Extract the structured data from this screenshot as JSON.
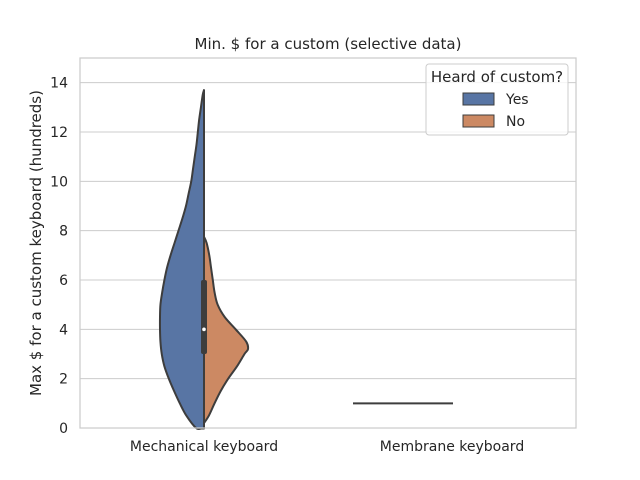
{
  "chart_data": {
    "type": "violin",
    "title": "Min. $ for a custom (selective data)",
    "xlabel": "",
    "ylabel": "Max $ for a custom keyboard (hundreds)",
    "ylim": [
      0,
      15
    ],
    "yticks": [
      0,
      2,
      4,
      6,
      8,
      10,
      12,
      14
    ],
    "grid": true,
    "split": true,
    "categories": [
      "Mechanical keyboard",
      "Membrane keyboard"
    ],
    "legend": {
      "title": "Heard of custom?",
      "placement": "top-right",
      "entries": [
        "Yes",
        "No"
      ]
    },
    "colors": {
      "Yes": "#5875a4",
      "No": "#cc8963",
      "outline": "#3d3d3d",
      "grid": "#cccccc"
    },
    "series": [
      {
        "name": "Yes",
        "category": "Mechanical keyboard",
        "density_profile": [
          [
            -0.02,
            0.06
          ],
          [
            0,
            0.18
          ],
          [
            0.5,
            0.4
          ],
          [
            1,
            0.55
          ],
          [
            1.5,
            0.68
          ],
          [
            2,
            0.8
          ],
          [
            2.5,
            0.9
          ],
          [
            3,
            0.96
          ],
          [
            3.5,
            0.99
          ],
          [
            4,
            1.0
          ],
          [
            4.5,
            1.0
          ],
          [
            5,
            0.99
          ],
          [
            5.5,
            0.95
          ],
          [
            6,
            0.9
          ],
          [
            6.5,
            0.84
          ],
          [
            7,
            0.76
          ],
          [
            7.5,
            0.67
          ],
          [
            8,
            0.58
          ],
          [
            8.5,
            0.49
          ],
          [
            9,
            0.41
          ],
          [
            9.5,
            0.35
          ],
          [
            10,
            0.29
          ],
          [
            10.5,
            0.25
          ],
          [
            11,
            0.21
          ],
          [
            11.5,
            0.17
          ],
          [
            12,
            0.14
          ],
          [
            12.5,
            0.11
          ],
          [
            13,
            0.07
          ],
          [
            13.5,
            0.03
          ],
          [
            13.7,
            0.0
          ]
        ]
      },
      {
        "name": "No",
        "category": "Mechanical keyboard",
        "density_profile": [
          [
            0.2,
            0.0
          ],
          [
            0.5,
            0.11
          ],
          [
            1,
            0.24
          ],
          [
            1.5,
            0.38
          ],
          [
            2,
            0.55
          ],
          [
            2.5,
            0.75
          ],
          [
            3,
            0.92
          ],
          [
            3.2,
            1.0
          ],
          [
            3.5,
            0.96
          ],
          [
            4,
            0.72
          ],
          [
            4.5,
            0.47
          ],
          [
            5,
            0.31
          ],
          [
            5.5,
            0.24
          ],
          [
            6,
            0.2
          ],
          [
            6.5,
            0.16
          ],
          [
            7,
            0.12
          ],
          [
            7.5,
            0.06
          ],
          [
            7.75,
            0.0
          ]
        ]
      }
    ],
    "box": {
      "category": "Mechanical keyboard",
      "q1": 3.0,
      "median": 4.0,
      "q3": 6.0,
      "whisker_low": 0.0,
      "whisker_high": 13.7
    },
    "flat_segments": [
      {
        "category": "Membrane keyboard",
        "value": 1.0
      }
    ]
  }
}
